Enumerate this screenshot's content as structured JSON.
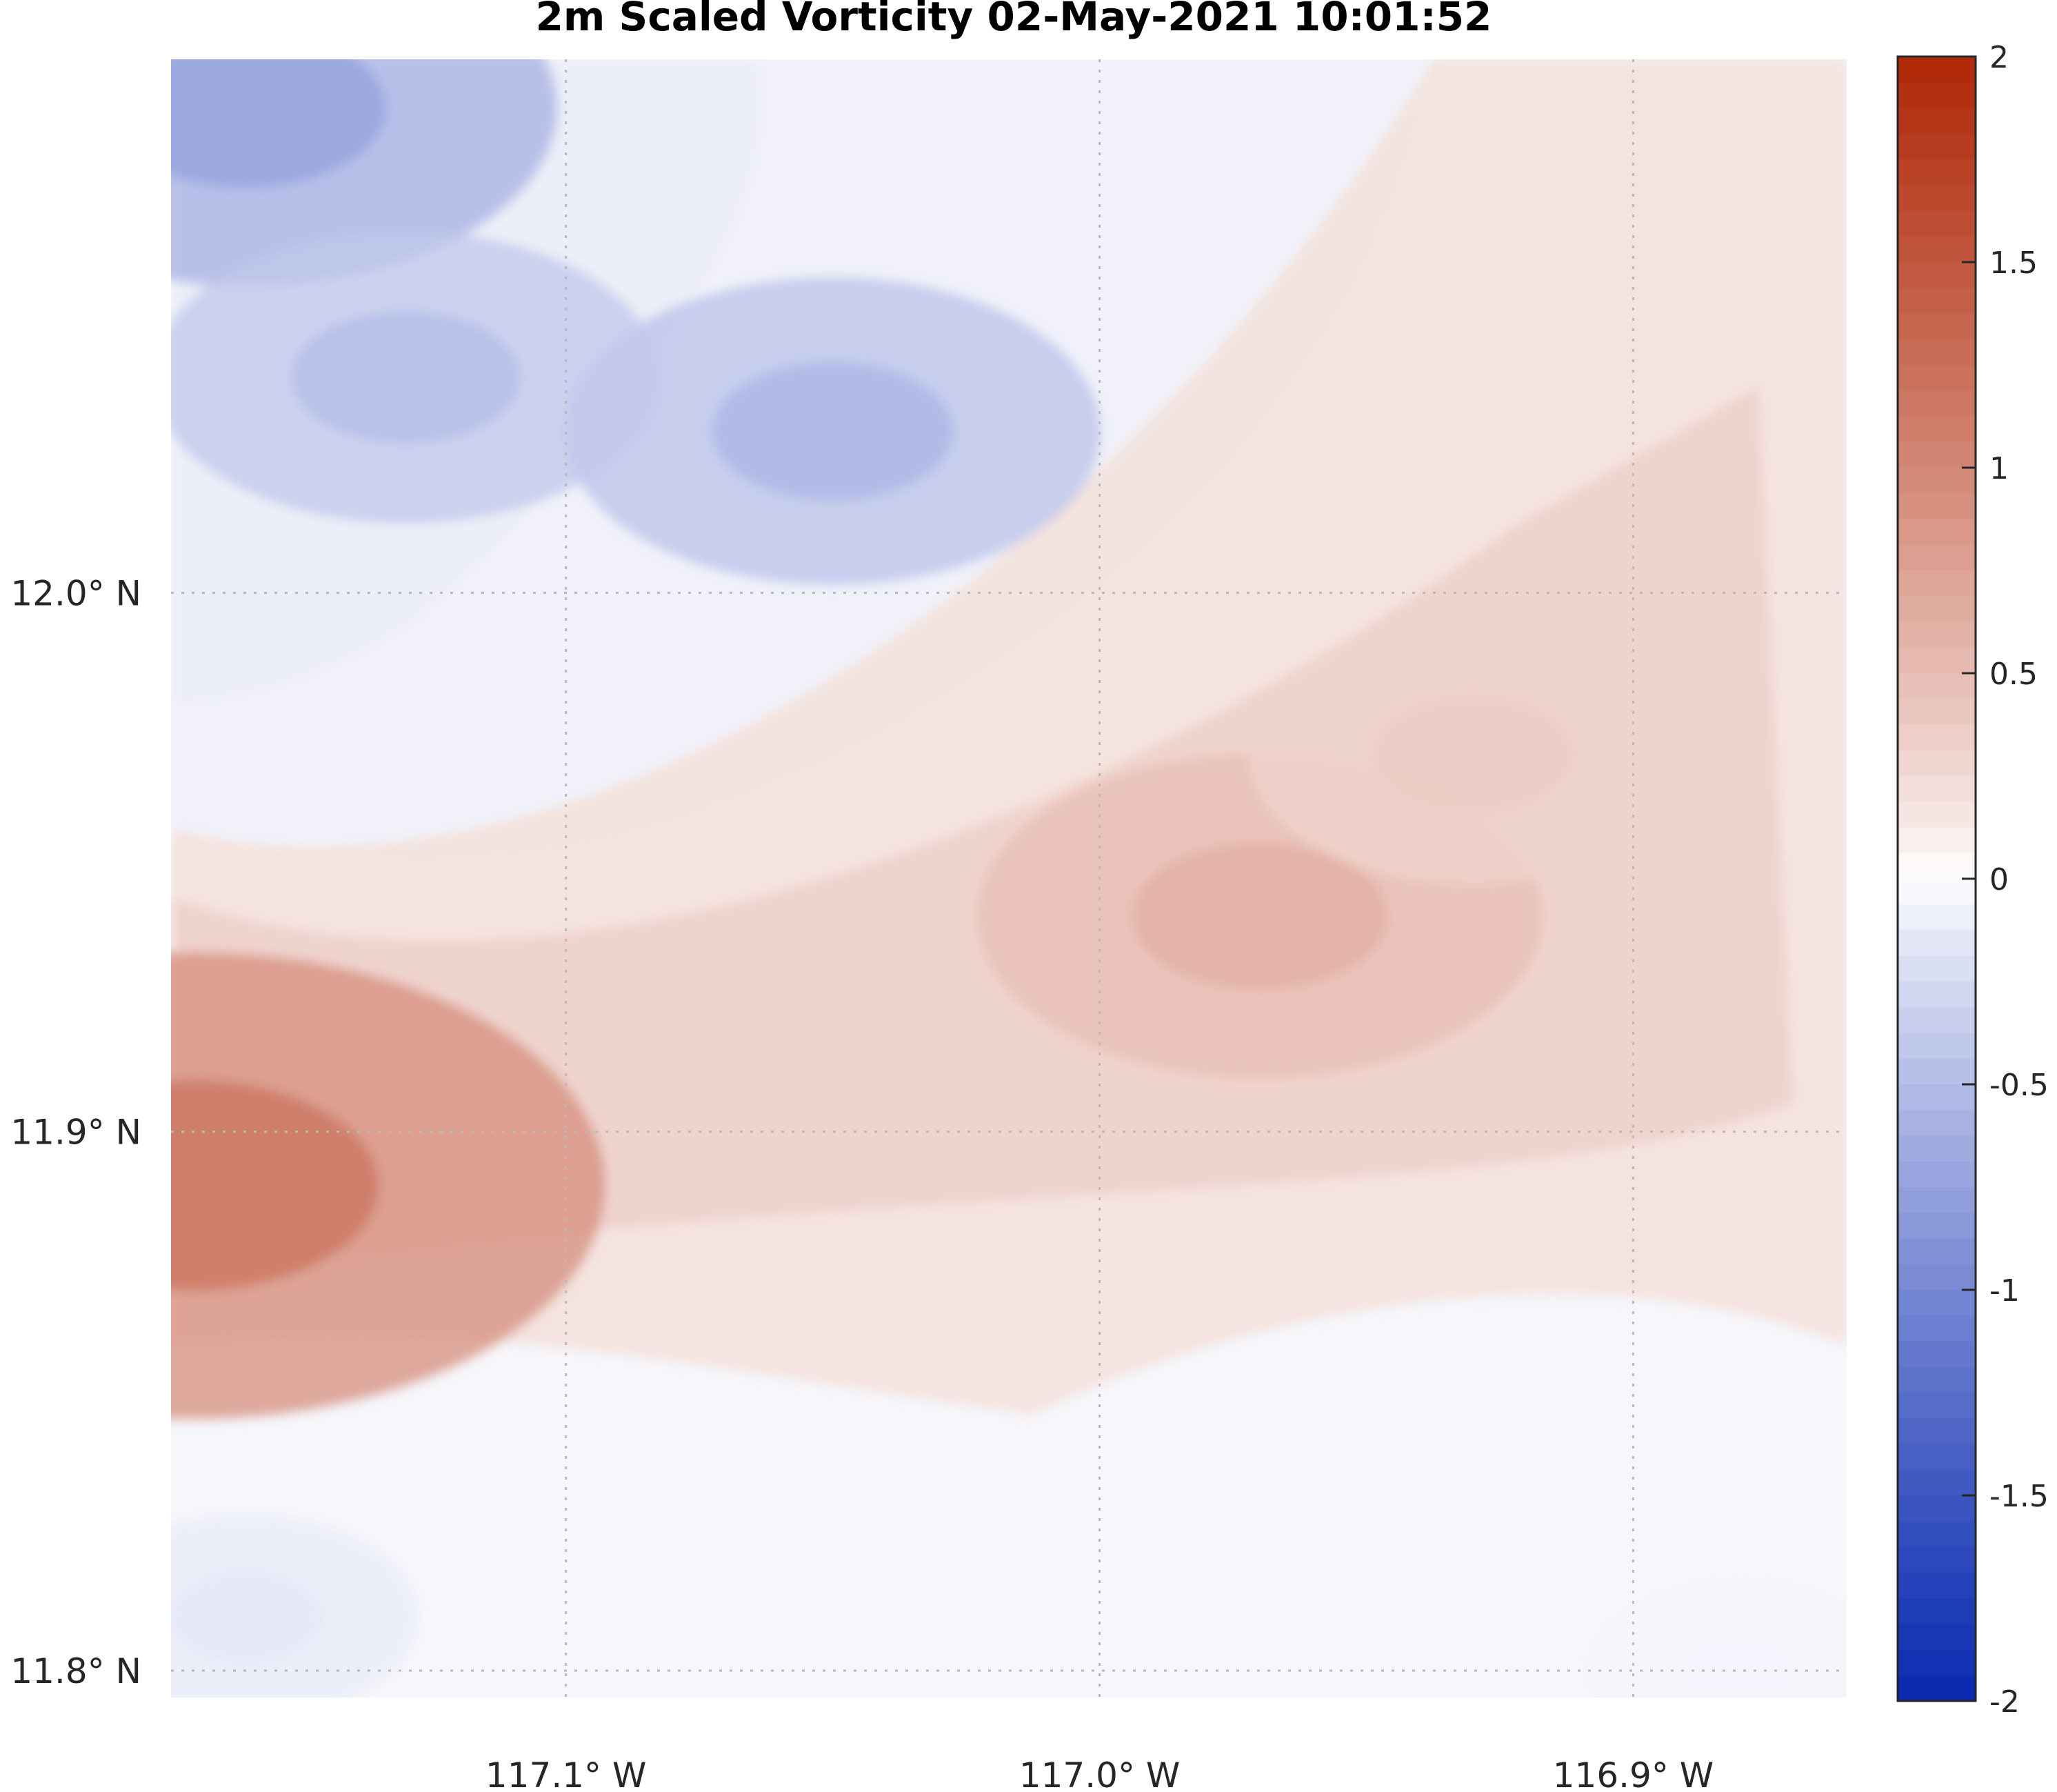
{
  "chart_data": {
    "type": "heatmap",
    "title": "2m Scaled Vorticity  02-May-2021 10:01:52",
    "x_ticks": [
      {
        "value": -117.1,
        "label": "117.1",
        "hemi": "W"
      },
      {
        "value": -117.0,
        "label": "117.0",
        "hemi": "W"
      },
      {
        "value": -116.9,
        "label": "116.9",
        "hemi": "W"
      }
    ],
    "y_ticks": [
      {
        "value": 12.0,
        "label": "12.0",
        "hemi": "N"
      },
      {
        "value": 11.9,
        "label": "11.9",
        "hemi": "N"
      },
      {
        "value": 11.8,
        "label": "11.8",
        "hemi": "N"
      }
    ],
    "degree_symbol": "°",
    "xlim": [
      -117.174,
      -116.86
    ],
    "ylim": [
      11.795,
      12.099
    ],
    "grid": true,
    "colorbar": {
      "ticks": [
        {
          "value": 2,
          "label": "2"
        },
        {
          "value": 1.5,
          "label": "1.5"
        },
        {
          "value": 1,
          "label": "1"
        },
        {
          "value": 0.5,
          "label": "0.5"
        },
        {
          "value": 0,
          "label": "0"
        },
        {
          "value": -0.5,
          "label": "-0.5"
        },
        {
          "value": -1,
          "label": "-1"
        },
        {
          "value": -1.5,
          "label": "-1.5"
        },
        {
          "value": -2,
          "label": "-2"
        }
      ],
      "range": [
        -2,
        2
      ],
      "levels": 64,
      "colormap": "blue-white-red",
      "low_color": "#0828b0",
      "mid_color": "#ffffff",
      "high_color": "#b02808"
    },
    "field_features": [
      {
        "kind": "negative",
        "lon": -117.16,
        "lat": 12.09,
        "value": -0.6
      },
      {
        "kind": "negative",
        "lon": -117.05,
        "lat": 12.03,
        "value": -0.45
      },
      {
        "kind": "negative",
        "lon": -117.13,
        "lat": 12.04,
        "value": -0.4
      },
      {
        "kind": "positive",
        "lon": -117.17,
        "lat": 11.89,
        "value": 0.95
      },
      {
        "kind": "positive",
        "lon": -116.97,
        "lat": 11.94,
        "value": 0.5
      },
      {
        "kind": "positive",
        "lon": -116.93,
        "lat": 11.97,
        "value": 0.3
      },
      {
        "kind": "negative",
        "lon": -117.16,
        "lat": 11.81,
        "value": -0.12
      },
      {
        "kind": "negative",
        "lon": -116.88,
        "lat": 11.8,
        "value": -0.05
      }
    ]
  }
}
